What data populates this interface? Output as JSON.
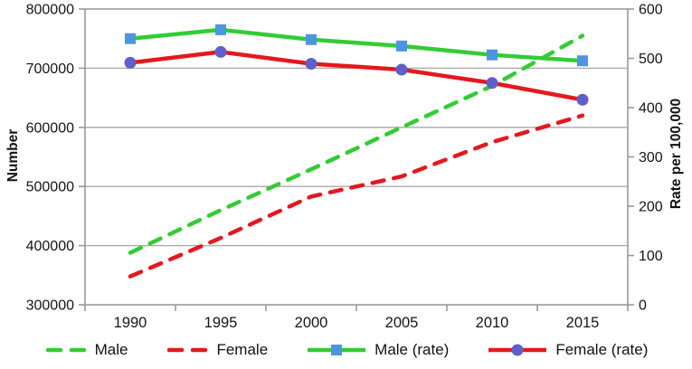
{
  "figure": {
    "legend_items": [
      "Male",
      "Female",
      "Male (rate)",
      "Female (rate)"
    ]
  },
  "chart_data": {
    "type": "line",
    "title": "",
    "x_categories": [
      "1990",
      "1995",
      "2000",
      "2005",
      "2010",
      "2015"
    ],
    "left_axis": {
      "label": "Number",
      "min": 300000,
      "max": 800000,
      "tick_values": [
        300000,
        400000,
        500000,
        600000,
        700000,
        800000
      ],
      "tick_labels": [
        "300000",
        "400000",
        "500000",
        "600000",
        "700000",
        "800000"
      ]
    },
    "right_axis": {
      "label": "Rate per 100,000",
      "min": 0,
      "max": 600,
      "tick_values": [
        0,
        100,
        200,
        300,
        400,
        500,
        600
      ],
      "tick_labels": [
        "0",
        "100",
        "200",
        "300",
        "400",
        "500",
        "600"
      ]
    },
    "series": [
      {
        "name": "Male",
        "axis": "left",
        "style": "dashed",
        "color": "#33CC33",
        "marker": "none",
        "values": [
          388000,
          460000,
          529000,
          600000,
          670000,
          755000
        ]
      },
      {
        "name": "Female",
        "axis": "left",
        "style": "dashed",
        "color": "#E4181E",
        "marker": "none",
        "values": [
          348000,
          413000,
          483000,
          517000,
          575000,
          620000
        ]
      },
      {
        "name": "Male (rate)",
        "axis": "right",
        "style": "solid",
        "color": "#33CC33",
        "marker": "square",
        "marker_color": "#4D95E0",
        "values": [
          540,
          558,
          538,
          525,
          507,
          495
        ]
      },
      {
        "name": "Female (rate)",
        "axis": "right",
        "style": "solid",
        "color": "#E4181E",
        "marker": "circle",
        "marker_color": "#5F5FC9",
        "values": [
          491,
          513,
          489,
          477,
          450,
          416
        ]
      }
    ],
    "grid": "horizontal",
    "grid_color": "#A8A8A8",
    "axis_color": "#9A9A9A",
    "legend_position": "bottom"
  }
}
